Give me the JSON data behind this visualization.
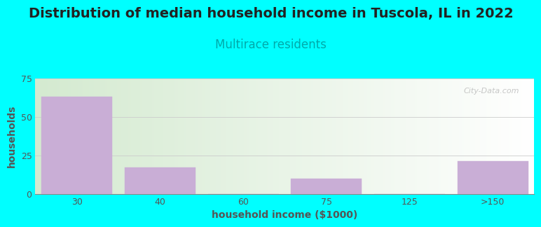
{
  "title": "Distribution of median household income in Tuscola, IL in 2022",
  "subtitle": "Multirace residents",
  "xlabel": "household income ($1000)",
  "ylabel": "households",
  "categories": [
    "30",
    "40",
    "60",
    "75",
    "125",
    ">150"
  ],
  "values": [
    63,
    17,
    0,
    10,
    0,
    21
  ],
  "bar_color": "#c9aed6",
  "bar_edgecolor": "#c9aed6",
  "background_color": "#00ffff",
  "plot_bg_gradient_left": "#d4ead0",
  "plot_bg_gradient_right": "#ffffff",
  "title_fontsize": 14,
  "subtitle_fontsize": 12,
  "subtitle_color": "#00aaaa",
  "axis_label_color": "#555555",
  "tick_color": "#555555",
  "ylim": [
    0,
    75
  ],
  "yticks": [
    0,
    25,
    50,
    75
  ],
  "grid_color": "#cccccc",
  "watermark": "City-Data.com"
}
